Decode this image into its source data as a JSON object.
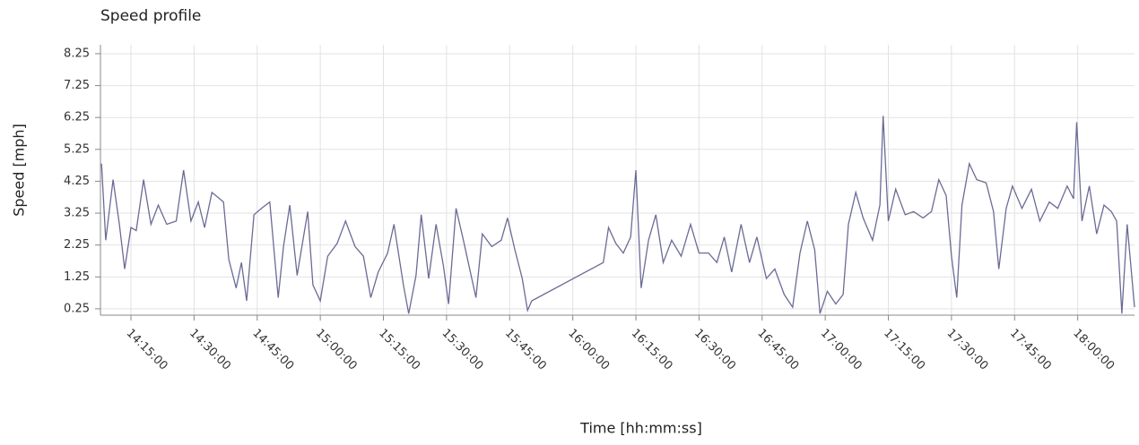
{
  "chart_data": {
    "type": "line",
    "title": "Speed profile",
    "x_label": "Time  [hh:mm:ss]",
    "y_label": "Speed [mph]",
    "x": [
      "14:08:00",
      "14:09:00",
      "14:10:45",
      "14:12:15",
      "14:13:30",
      "14:15:00",
      "14:16:15",
      "14:18:00",
      "14:19:45",
      "14:21:30",
      "14:23:30",
      "14:25:45",
      "14:27:30",
      "14:29:15",
      "14:31:00",
      "14:32:30",
      "14:34:15",
      "14:37:00",
      "14:38:15",
      "14:40:00",
      "14:41:15",
      "14:42:30",
      "14:44:15",
      "14:46:00",
      "14:48:00",
      "14:50:00",
      "14:51:15",
      "14:52:45",
      "14:54:30",
      "14:55:45",
      "14:57:00",
      "14:58:15",
      "15:00:00",
      "15:01:45",
      "15:04:00",
      "15:06:00",
      "15:08:15",
      "15:10:15",
      "15:12:00",
      "15:13:45",
      "15:16:00",
      "15:17:30",
      "15:19:45",
      "15:21:00",
      "15:22:45",
      "15:24:00",
      "15:25:45",
      "15:27:30",
      "15:29:15",
      "15:30:30",
      "15:32:15",
      "15:34:00",
      "15:35:30",
      "15:37:00",
      "15:38:30",
      "15:40:45",
      "15:43:00",
      "15:44:30",
      "15:46:15",
      "15:48:00",
      "15:49:15",
      "15:50:15",
      "16:07:15",
      "16:08:30",
      "16:10:15",
      "16:12:00",
      "16:13:45",
      "16:15:00",
      "16:16:15",
      "16:18:00",
      "16:19:45",
      "16:21:30",
      "16:23:30",
      "16:25:45",
      "16:28:00",
      "16:30:00",
      "16:32:15",
      "16:34:15",
      "16:36:00",
      "16:37:45",
      "16:40:00",
      "16:42:00",
      "16:43:45",
      "16:46:00",
      "16:48:00",
      "16:50:15",
      "16:52:15",
      "16:54:00",
      "16:55:45",
      "16:57:30",
      "16:58:45",
      "17:00:30",
      "17:02:30",
      "17:04:15",
      "17:05:30",
      "17:07:15",
      "17:09:00",
      "17:11:15",
      "17:13:00",
      "17:13:45",
      "17:15:00",
      "17:16:45",
      "17:19:00",
      "17:21:00",
      "17:23:15",
      "17:25:15",
      "17:27:00",
      "17:28:45",
      "17:30:00",
      "17:31:15",
      "17:32:30",
      "17:34:15",
      "17:36:00",
      "17:38:15",
      "17:40:00",
      "17:41:15",
      "17:43:00",
      "17:44:30",
      "17:46:45",
      "17:49:00",
      "17:51:00",
      "17:53:15",
      "17:55:15",
      "17:57:30",
      "17:59:00",
      "17:59:45",
      "18:01:00",
      "18:02:45",
      "18:04:30",
      "18:06:15",
      "18:08:00",
      "18:09:15",
      "18:10:30",
      "18:11:45",
      "18:13:30"
    ],
    "series": [
      {
        "name": "Speed",
        "color": "#6b6b96",
        "values": [
          4.8,
          2.4,
          4.3,
          2.9,
          1.5,
          2.8,
          2.7,
          4.3,
          2.9,
          3.5,
          2.9,
          3.0,
          4.6,
          3.0,
          3.6,
          2.8,
          3.9,
          3.6,
          1.8,
          0.9,
          1.7,
          0.5,
          3.2,
          3.4,
          3.6,
          0.6,
          2.2,
          3.5,
          1.3,
          2.3,
          3.3,
          1.0,
          0.5,
          1.9,
          2.3,
          3.0,
          2.2,
          1.9,
          0.6,
          1.4,
          2.0,
          2.9,
          1.0,
          0.1,
          1.3,
          3.2,
          1.2,
          2.9,
          1.6,
          0.4,
          3.4,
          2.4,
          1.5,
          0.6,
          2.6,
          2.2,
          2.4,
          3.1,
          2.1,
          1.2,
          0.2,
          0.5,
          1.7,
          2.8,
          2.3,
          2.0,
          2.5,
          4.6,
          0.9,
          2.4,
          3.2,
          1.7,
          2.4,
          1.9,
          2.9,
          2.0,
          2.0,
          1.7,
          2.5,
          1.4,
          2.9,
          1.7,
          2.5,
          1.2,
          1.5,
          0.7,
          0.3,
          2.0,
          3.0,
          2.1,
          0.1,
          0.8,
          0.4,
          0.7,
          2.9,
          3.9,
          3.1,
          2.4,
          3.5,
          6.3,
          3.0,
          4.0,
          3.2,
          3.3,
          3.1,
          3.3,
          4.3,
          3.8,
          1.9,
          0.6,
          3.5,
          4.8,
          4.3,
          4.2,
          3.3,
          1.5,
          3.4,
          4.1,
          3.4,
          4.0,
          3.0,
          3.6,
          3.4,
          4.1,
          3.7,
          6.1,
          3.0,
          4.1,
          2.6,
          3.5,
          3.3,
          3.0,
          0.1,
          2.9,
          0.3
        ]
      }
    ],
    "xlim": [
      "14:07:45",
      "18:13:30"
    ],
    "xticks": [
      "14:15:00",
      "14:30:00",
      "14:45:00",
      "15:00:00",
      "15:15:00",
      "15:30:00",
      "15:45:00",
      "16:00:00",
      "16:15:00",
      "16:30:00",
      "16:45:00",
      "17:00:00",
      "17:15:00",
      "17:30:00",
      "17:45:00",
      "18:00:00"
    ],
    "ylim": [
      0.05,
      8.53
    ],
    "yticks": [
      0.25,
      1.25,
      2.25,
      3.25,
      4.25,
      5.25,
      6.25,
      7.25,
      8.25
    ],
    "grid": true
  }
}
